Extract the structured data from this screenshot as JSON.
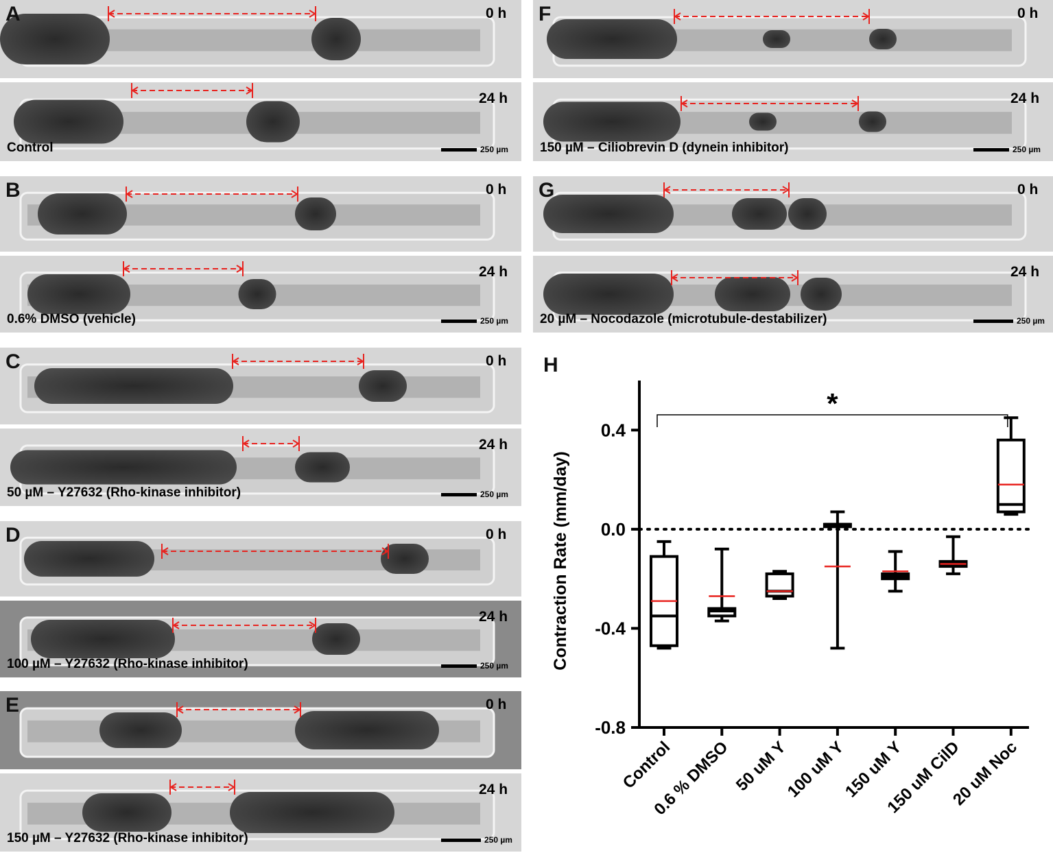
{
  "panels": [
    {
      "letter": "A",
      "t0": "0 h",
      "t24": "24 h",
      "condition": "Control",
      "scale": "250 µm"
    },
    {
      "letter": "B",
      "t0": "0 h",
      "t24": "24 h",
      "condition": "0.6% DMSO (vehicle)",
      "scale": "250 µm"
    },
    {
      "letter": "C",
      "t0": "0 h",
      "t24": "24 h",
      "condition": "50 µM – Y27632 (Rho-kinase inhibitor)",
      "scale": "250 µm"
    },
    {
      "letter": "D",
      "t0": "0 h",
      "t24": "24 h",
      "condition": "100 µM – Y27632 (Rho-kinase inhibitor)",
      "scale": "250 µm"
    },
    {
      "letter": "E",
      "t0": "0 h",
      "t24": "24 h",
      "condition": "150 µM – Y27632 (Rho-kinase inhibitor)",
      "scale": "250 µm"
    },
    {
      "letter": "F",
      "t0": "0 h",
      "t24": "24 h",
      "condition": "150 µM – Ciliobrevin D (dynein inhibitor)",
      "scale": "250 µm"
    },
    {
      "letter": "G",
      "t0": "0 h",
      "t24": "24 h",
      "condition": "20 µM – Nocodazole (microtubule-destabilizer)",
      "scale": "250 µm"
    }
  ],
  "chart_label": "H",
  "chart_data": {
    "type": "box",
    "categories": [
      "Control",
      "0.6 % DMSO",
      "50 uM Y",
      "100 uM Y",
      "150 uM Y",
      "150 uM CilD",
      "20 uM Noc"
    ],
    "ylabel": "Contraction Rate (mm/day)",
    "ylim": [
      -0.8,
      0.6
    ],
    "yticks": [
      "-0.8",
      "-0.4",
      "0.0",
      "0.4"
    ],
    "ytick_values": [
      -0.8,
      -0.4,
      0.0,
      0.4
    ],
    "reference_line": 0.0,
    "significance": {
      "from": "Control",
      "to": "20 uM Noc",
      "label": "*"
    },
    "boxes": [
      {
        "min": -0.48,
        "q1": -0.47,
        "median": -0.35,
        "q3": -0.11,
        "max": -0.05,
        "mean": -0.29
      },
      {
        "min": -0.37,
        "q1": -0.35,
        "median": -0.33,
        "q3": -0.32,
        "max": -0.08,
        "mean": -0.27
      },
      {
        "min": -0.28,
        "q1": -0.27,
        "median": -0.25,
        "q3": -0.18,
        "max": -0.17,
        "mean": -0.25
      },
      {
        "min": -0.48,
        "q1": 0.01,
        "median": 0.02,
        "q3": 0.02,
        "max": 0.07,
        "mean": -0.15
      },
      {
        "min": -0.25,
        "q1": -0.2,
        "median": -0.19,
        "q3": -0.18,
        "max": -0.09,
        "mean": -0.17
      },
      {
        "min": -0.18,
        "q1": -0.15,
        "median": -0.14,
        "q3": -0.13,
        "max": -0.03,
        "mean": -0.14
      },
      {
        "min": 0.06,
        "q1": 0.07,
        "median": 0.1,
        "q3": 0.36,
        "max": 0.45,
        "mean": 0.18
      }
    ],
    "colors": {
      "box": "#000000",
      "mean": "#e8231f"
    }
  }
}
